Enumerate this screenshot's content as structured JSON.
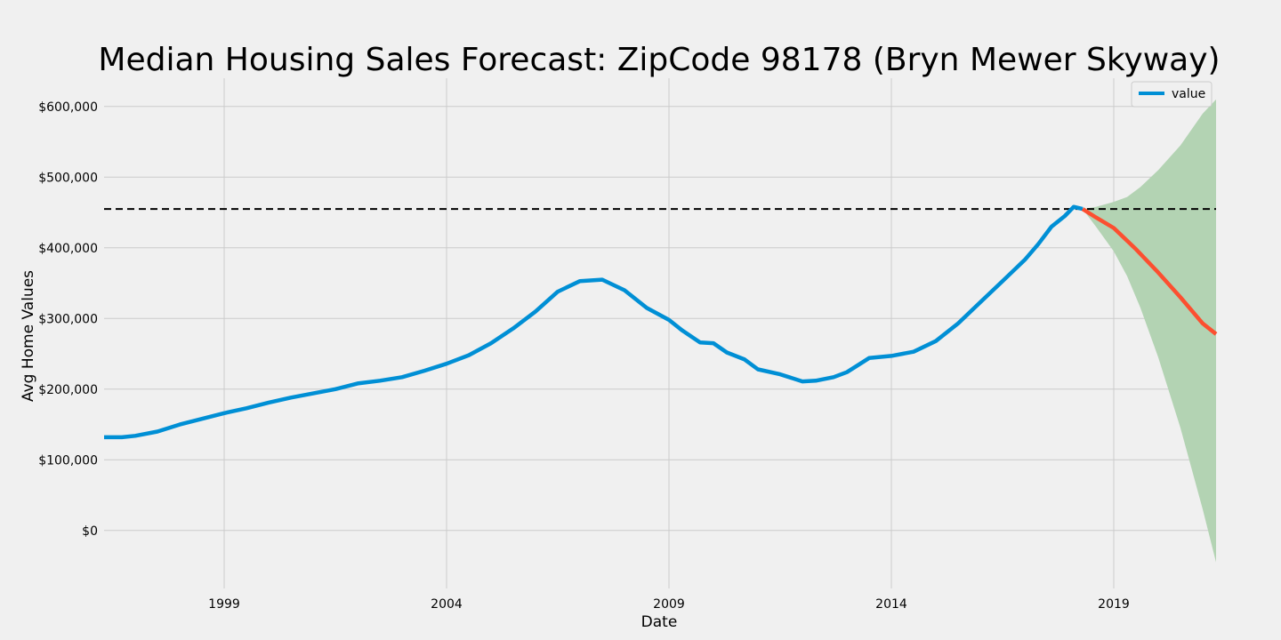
{
  "chart_data": {
    "type": "line",
    "title": "Median Housing Sales Forecast: ZipCode 98178 (Bryn Mewer Skyway)",
    "xlabel": "Date",
    "ylabel": "Avg Home Values",
    "xlim": [
      1996.3,
      2021.3
    ],
    "ylim": [
      -82000,
      640000
    ],
    "x_ticks": [
      1999,
      2004,
      2009,
      2014,
      2019
    ],
    "x_tick_labels": [
      "1999",
      "2004",
      "2009",
      "2014",
      "2019"
    ],
    "y_ticks": [
      0,
      100000,
      200000,
      300000,
      400000,
      500000,
      600000
    ],
    "y_tick_labels": [
      "$0",
      "$100,000",
      "$200,000",
      "$300,000",
      "$400,000",
      "$500,000",
      "$600,000"
    ],
    "grid": true,
    "legend": {
      "position": "top-right",
      "entries": [
        "value"
      ]
    },
    "colors": {
      "background": "#f0f0f0",
      "grid": "#cbcbcb",
      "history": "#008fd5",
      "forecast": "#fc4f30",
      "confidence": "#b3d3b3",
      "reference": "#000000"
    },
    "reference_line": {
      "y": 455000,
      "style": "dashed"
    },
    "series": [
      {
        "name": "value",
        "role": "history",
        "x": [
          1996.3,
          1996.7,
          1997.0,
          1997.5,
          1998.0,
          1998.5,
          1999.0,
          1999.5,
          2000.0,
          2000.5,
          2001.0,
          2001.5,
          2002.0,
          2002.5,
          2003.0,
          2003.5,
          2004.0,
          2004.5,
          2005.0,
          2005.5,
          2006.0,
          2006.5,
          2007.0,
          2007.5,
          2008.0,
          2008.5,
          2009.0,
          2009.3,
          2009.7,
          2010.0,
          2010.3,
          2010.7,
          2011.0,
          2011.5,
          2012.0,
          2012.3,
          2012.7,
          2013.0,
          2013.3,
          2013.5,
          2014.0,
          2014.5,
          2015.0,
          2015.5,
          2016.0,
          2016.5,
          2017.0,
          2017.3,
          2017.6,
          2017.9,
          2018.1,
          2018.3
        ],
        "y": [
          132000,
          132000,
          134000,
          140000,
          150000,
          158000,
          166000,
          173000,
          181000,
          188000,
          194000,
          200000,
          208000,
          212000,
          217000,
          226000,
          236000,
          248000,
          265000,
          286000,
          310000,
          338000,
          353000,
          355000,
          340000,
          315000,
          298000,
          283000,
          266000,
          265000,
          252000,
          242000,
          228000,
          221000,
          211000,
          212000,
          217000,
          224000,
          236000,
          244000,
          247000,
          253000,
          268000,
          293000,
          323000,
          353000,
          383000,
          405000,
          430000,
          445000,
          458000,
          455000
        ]
      },
      {
        "role": "forecast",
        "x": [
          2018.3,
          2018.6,
          2019.0,
          2019.5,
          2020.0,
          2020.5,
          2021.0,
          2021.3
        ],
        "y": [
          455000,
          443000,
          428000,
          398000,
          365000,
          330000,
          293000,
          278000
        ]
      }
    ],
    "confidence_band": {
      "x": [
        2018.3,
        2018.6,
        2019.0,
        2019.3,
        2019.6,
        2020.0,
        2020.5,
        2021.0,
        2021.3
      ],
      "lower": [
        455000,
        430000,
        395000,
        360000,
        315000,
        245000,
        145000,
        30000,
        -45000
      ],
      "upper": [
        455000,
        458000,
        465000,
        472000,
        486000,
        510000,
        545000,
        590000,
        610000
      ]
    }
  }
}
